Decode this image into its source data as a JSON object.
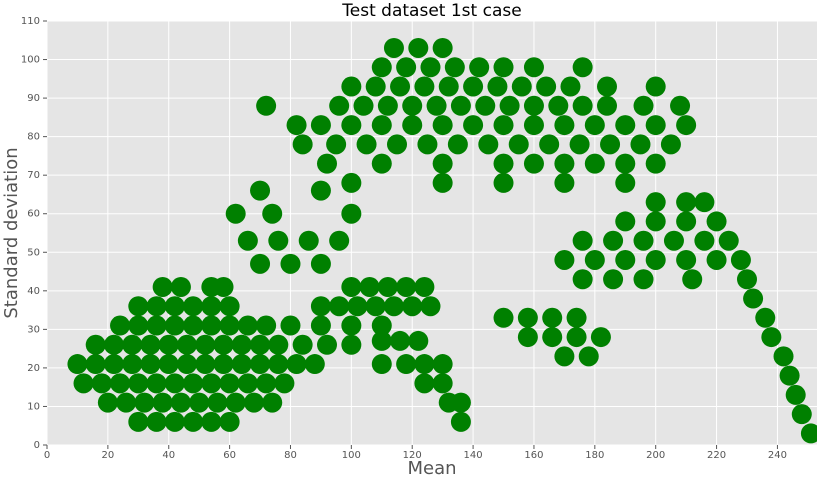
{
  "chart_data": {
    "type": "scatter",
    "title": "Test dataset 1st case",
    "x_label": "Mean",
    "y_label": "Standard deviation",
    "color": "#008000",
    "grid": true,
    "xlim": [
      0,
      253
    ],
    "ylim": [
      0,
      110
    ],
    "xticks": [
      0,
      20,
      40,
      60,
      80,
      100,
      120,
      140,
      160,
      180,
      200,
      220,
      240
    ],
    "yticks": [
      0,
      10,
      20,
      30,
      40,
      50,
      60,
      70,
      80,
      90,
      100,
      110
    ],
    "x": [
      30,
      36,
      42,
      48,
      54,
      60,
      20,
      26,
      32,
      38,
      44,
      50,
      56,
      62,
      68,
      74,
      12,
      18,
      24,
      30,
      36,
      42,
      48,
      54,
      60,
      66,
      72,
      78,
      10,
      16,
      22,
      28,
      34,
      40,
      46,
      52,
      58,
      64,
      70,
      76,
      82,
      88,
      16,
      22,
      28,
      34,
      40,
      46,
      52,
      58,
      64,
      70,
      76,
      84,
      92,
      100,
      24,
      30,
      36,
      42,
      48,
      54,
      60,
      66,
      72,
      80,
      90,
      100,
      110,
      30,
      36,
      42,
      48,
      54,
      60,
      90,
      96,
      102,
      108,
      114,
      120,
      126,
      38,
      44,
      54,
      58,
      100,
      106,
      112,
      118,
      124,
      110,
      116,
      122,
      110,
      118,
      124,
      130,
      124,
      130,
      132,
      136,
      136,
      70,
      80,
      90,
      66,
      76,
      86,
      96,
      62,
      74,
      100,
      70,
      90,
      100,
      130,
      150,
      170,
      190,
      92,
      110,
      130,
      150,
      160,
      170,
      180,
      190,
      200,
      84,
      95,
      105,
      115,
      125,
      135,
      145,
      155,
      165,
      175,
      185,
      195,
      205,
      82,
      90,
      100,
      110,
      120,
      130,
      140,
      150,
      160,
      170,
      180,
      190,
      200,
      210,
      72,
      96,
      104,
      112,
      120,
      128,
      136,
      144,
      152,
      160,
      168,
      176,
      184,
      196,
      208,
      100,
      108,
      116,
      124,
      132,
      140,
      148,
      156,
      164,
      172,
      184,
      200,
      110,
      118,
      126,
      134,
      142,
      150,
      160,
      176,
      114,
      122,
      130,
      200,
      210,
      216,
      190,
      200,
      210,
      220,
      176,
      186,
      196,
      206,
      216,
      224,
      170,
      180,
      190,
      200,
      210,
      220,
      228,
      176,
      186,
      196,
      212,
      230,
      232,
      236,
      238,
      242,
      244,
      246,
      248,
      251,
      150,
      158,
      166,
      174,
      158,
      166,
      174,
      182,
      170,
      178
    ],
    "values": [
      6,
      6,
      6,
      6,
      6,
      6,
      11,
      11,
      11,
      11,
      11,
      11,
      11,
      11,
      11,
      11,
      16,
      16,
      16,
      16,
      16,
      16,
      16,
      16,
      16,
      16,
      16,
      16,
      21,
      21,
      21,
      21,
      21,
      21,
      21,
      21,
      21,
      21,
      21,
      21,
      21,
      21,
      26,
      26,
      26,
      26,
      26,
      26,
      26,
      26,
      26,
      26,
      26,
      26,
      26,
      26,
      31,
      31,
      31,
      31,
      31,
      31,
      31,
      31,
      31,
      31,
      31,
      31,
      31,
      36,
      36,
      36,
      36,
      36,
      36,
      36,
      36,
      36,
      36,
      36,
      36,
      36,
      41,
      41,
      41,
      41,
      41,
      41,
      41,
      41,
      41,
      27,
      27,
      27,
      21,
      21,
      21,
      21,
      16,
      16,
      11,
      11,
      6,
      47,
      47,
      47,
      53,
      53,
      53,
      53,
      60,
      60,
      60,
      66,
      66,
      68,
      68,
      68,
      68,
      68,
      73,
      73,
      73,
      73,
      73,
      73,
      73,
      73,
      73,
      78,
      78,
      78,
      78,
      78,
      78,
      78,
      78,
      78,
      78,
      78,
      78,
      78,
      83,
      83,
      83,
      83,
      83,
      83,
      83,
      83,
      83,
      83,
      83,
      83,
      83,
      83,
      88,
      88,
      88,
      88,
      88,
      88,
      88,
      88,
      88,
      88,
      88,
      88,
      88,
      88,
      88,
      93,
      93,
      93,
      93,
      93,
      93,
      93,
      93,
      93,
      93,
      93,
      93,
      98,
      98,
      98,
      98,
      98,
      98,
      98,
      98,
      103,
      103,
      103,
      63,
      63,
      63,
      58,
      58,
      58,
      58,
      53,
      53,
      53,
      53,
      53,
      53,
      48,
      48,
      48,
      48,
      48,
      48,
      48,
      43,
      43,
      43,
      43,
      43,
      38,
      33,
      28,
      23,
      18,
      13,
      8,
      3,
      33,
      33,
      33,
      33,
      28,
      28,
      28,
      28,
      23,
      23
    ]
  }
}
